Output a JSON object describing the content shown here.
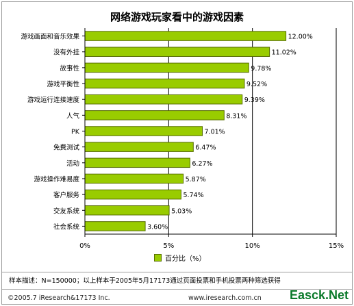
{
  "chart_data": {
    "type": "bar",
    "orientation": "horizontal",
    "title": "网络游戏玩家看中的游戏因素",
    "categories": [
      "游戏画面和音乐效果",
      "没有外挂",
      "故事性",
      "游戏平衡性",
      "游戏运行连接速度",
      "人气",
      "PK",
      "免费测试",
      "活动",
      "游戏操作难易度",
      "客户服务",
      "交友系统",
      "社会系统"
    ],
    "values": [
      12.0,
      11.02,
      9.78,
      9.52,
      9.39,
      8.31,
      7.01,
      6.47,
      6.27,
      5.87,
      5.74,
      5.03,
      3.6
    ],
    "value_labels": [
      "12.00%",
      "11.02%",
      "9.78%",
      "9.52%",
      "9.39%",
      "8.31%",
      "7.01%",
      "6.47%",
      "6.27%",
      "5.87%",
      "5.74%",
      "5.03%",
      "3.60%"
    ],
    "x_ticks": [
      0,
      5,
      10,
      15
    ],
    "x_tick_labels": [
      "0%",
      "5%",
      "10%",
      "15%"
    ],
    "xlim": [
      0,
      15
    ],
    "grid": true,
    "legend": {
      "position": "bottom",
      "label": "百分比（%）"
    },
    "colors": {
      "bar": "#99cc00",
      "bar_border": "#556b00"
    }
  },
  "footer": {
    "note": "样本描述：N=150000；以上样本于2005年5月17173通过页面投票和手机投票两种筛选获得",
    "copyright": "©2005.7 iResearch&17173 Inc.",
    "site": "www.iresearch.com.cn",
    "watermark": "Easck.Net"
  }
}
